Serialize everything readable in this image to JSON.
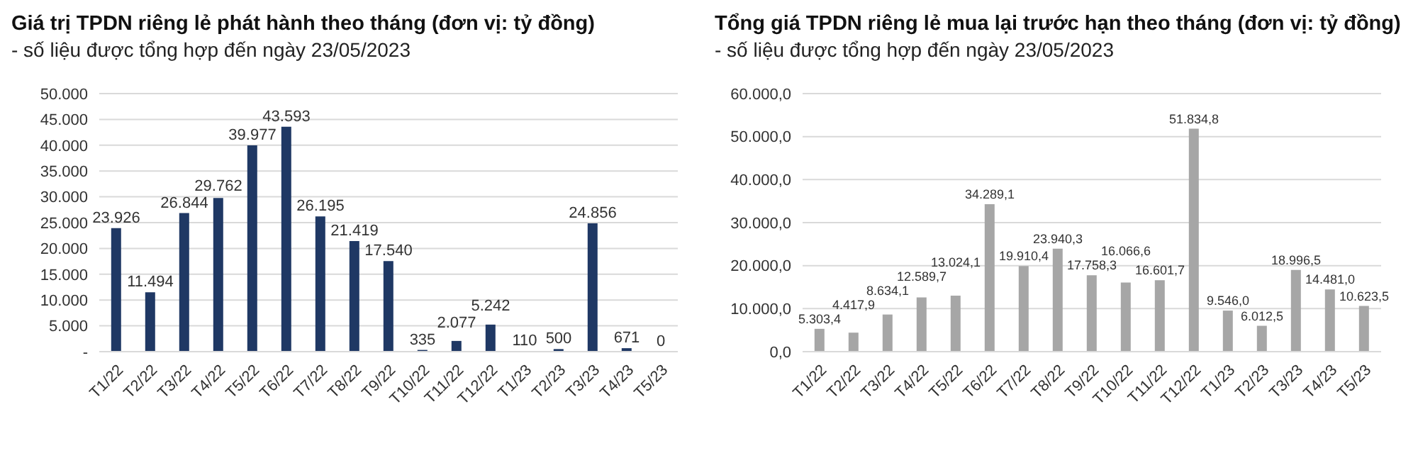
{
  "chart_data": [
    {
      "type": "bar",
      "title": "Giá trị TPDN riêng lẻ phát hành theo tháng (đơn vị: tỷ đồng)",
      "subtitle": "- số liệu được tổng hợp đến ngày 23/05/2023",
      "categories": [
        "T1/22",
        "T2/22",
        "T3/22",
        "T4/22",
        "T5/22",
        "T6/22",
        "T7/22",
        "T8/22",
        "T9/22",
        "T10/22",
        "T11/22",
        "T12/22",
        "T1/23",
        "T2/23",
        "T3/23",
        "T4/23",
        "T5/23"
      ],
      "values": [
        23926,
        11494,
        26844,
        29762,
        39977,
        43593,
        26195,
        21419,
        17540,
        335,
        2077,
        5242,
        110,
        500,
        24856,
        671,
        0
      ],
      "value_labels": [
        "23.926",
        "11.494",
        "26.844",
        "29.762",
        "39.977",
        "43.593",
        "26.195",
        "21.419",
        "17.540",
        "335",
        "2.077",
        "5.242",
        "110",
        "500",
        "24.856",
        "671",
        "0"
      ],
      "color": "#1f3864",
      "ylim": [
        0,
        50000
      ],
      "yticks": [
        {
          "value": 0,
          "label": "-"
        },
        {
          "value": 5000,
          "label": "5.000"
        },
        {
          "value": 10000,
          "label": "10.000"
        },
        {
          "value": 15000,
          "label": "15.000"
        },
        {
          "value": 20000,
          "label": "20.000"
        },
        {
          "value": 25000,
          "label": "25.000"
        },
        {
          "value": 30000,
          "label": "30.000"
        },
        {
          "value": 35000,
          "label": "35.000"
        },
        {
          "value": 40000,
          "label": "40.000"
        },
        {
          "value": 45000,
          "label": "45.000"
        },
        {
          "value": 50000,
          "label": "50.000"
        }
      ],
      "grid": "y"
    },
    {
      "type": "bar",
      "title": "Tổng giá TPDN riêng lẻ mua lại trước hạn theo tháng (đơn vị: tỷ đồng)",
      "subtitle": "- số liệu được tổng hợp đến ngày 23/05/2023",
      "categories": [
        "T1/22",
        "T2/22",
        "T3/22",
        "T4/22",
        "T5/22",
        "T6/22",
        "T7/22",
        "T8/22",
        "T9/22",
        "T10/22",
        "T11/22",
        "T12/22",
        "T1/23",
        "T2/23",
        "T3/23",
        "T4/23",
        "T5/23"
      ],
      "values": [
        5303.4,
        4417.9,
        8634.1,
        12589.7,
        13024.1,
        34289.1,
        19910.4,
        23940.3,
        17758.3,
        16066.6,
        16601.7,
        51834.8,
        9546.0,
        6012.5,
        18996.5,
        14481.0,
        10623.5
      ],
      "value_labels": [
        "5.303,4",
        "4.417,9",
        "8.634,1",
        "12.589,7",
        "13.024,1",
        "34.289,1",
        "19.910,4",
        "23.940,3",
        "17.758,3",
        "16.066,6",
        "16.601,7",
        "51.834,8",
        "9.546,0",
        "6.012,5",
        "18.996,5",
        "14.481,0",
        "10.623,5"
      ],
      "color": "#a6a6a6",
      "ylim": [
        0,
        60000
      ],
      "yticks": [
        {
          "value": 0,
          "label": "0,0"
        },
        {
          "value": 10000,
          "label": "10.000,0"
        },
        {
          "value": 20000,
          "label": "20.000,0"
        },
        {
          "value": 30000,
          "label": "30.000,0"
        },
        {
          "value": 40000,
          "label": "40.000,0"
        },
        {
          "value": 50000,
          "label": "50.000,0"
        },
        {
          "value": 60000,
          "label": "60.000,0"
        }
      ],
      "grid": "y"
    }
  ]
}
